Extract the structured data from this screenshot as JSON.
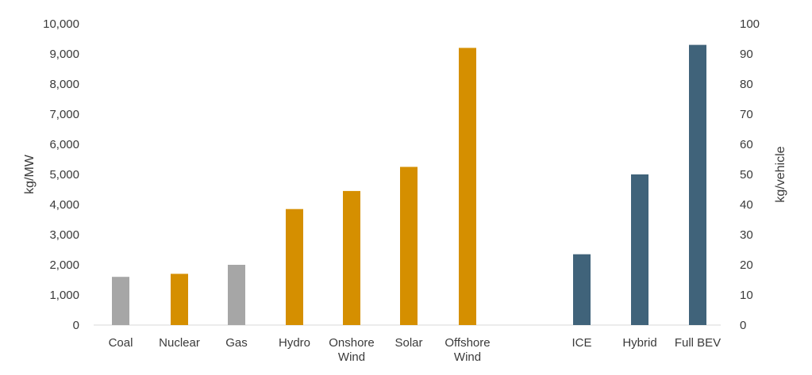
{
  "chart_data": {
    "type": "bar",
    "grid": false,
    "legend": "none",
    "axes": {
      "left": {
        "label": "kg/MW",
        "ylim": [
          0,
          10000
        ],
        "ticks": [
          0,
          1000,
          2000,
          3000,
          4000,
          5000,
          6000,
          7000,
          8000,
          9000,
          10000
        ],
        "tick_labels": [
          "0",
          "1,000",
          "2,000",
          "3,000",
          "4,000",
          "5,000",
          "6,000",
          "7,000",
          "8,000",
          "9,000",
          "10,000"
        ]
      },
      "right": {
        "label": "kg/vehicle",
        "ylim": [
          0,
          100
        ],
        "ticks": [
          0,
          10,
          20,
          30,
          40,
          50,
          60,
          70,
          80,
          90,
          100
        ],
        "tick_labels": [
          "0",
          "10",
          "20",
          "30",
          "40",
          "50",
          "60",
          "70",
          "80",
          "90",
          "100"
        ]
      }
    },
    "categories": [
      {
        "label": [
          "Coal"
        ],
        "value": 1600,
        "axis": "left",
        "color": "#a6a6a6"
      },
      {
        "label": [
          "Nuclear"
        ],
        "value": 1700,
        "axis": "left",
        "color": "#d58f00"
      },
      {
        "label": [
          "Gas"
        ],
        "value": 2000,
        "axis": "left",
        "color": "#a6a6a6"
      },
      {
        "label": [
          "Hydro"
        ],
        "value": 3850,
        "axis": "left",
        "color": "#d58f00"
      },
      {
        "label": [
          "Onshore",
          "Wind"
        ],
        "value": 4450,
        "axis": "left",
        "color": "#d58f00"
      },
      {
        "label": [
          "Solar"
        ],
        "value": 5250,
        "axis": "left",
        "color": "#d58f00"
      },
      {
        "label": [
          "Offshore",
          "Wind"
        ],
        "value": 9200,
        "axis": "left",
        "color": "#d58f00"
      },
      {
        "label": [
          "ICE"
        ],
        "value": 23.5,
        "axis": "right",
        "color": "#40637a"
      },
      {
        "label": [
          "Hybrid"
        ],
        "value": 50,
        "axis": "right",
        "color": "#40637a"
      },
      {
        "label": [
          "Full BEV"
        ],
        "value": 93,
        "axis": "right",
        "color": "#40637a"
      }
    ]
  }
}
